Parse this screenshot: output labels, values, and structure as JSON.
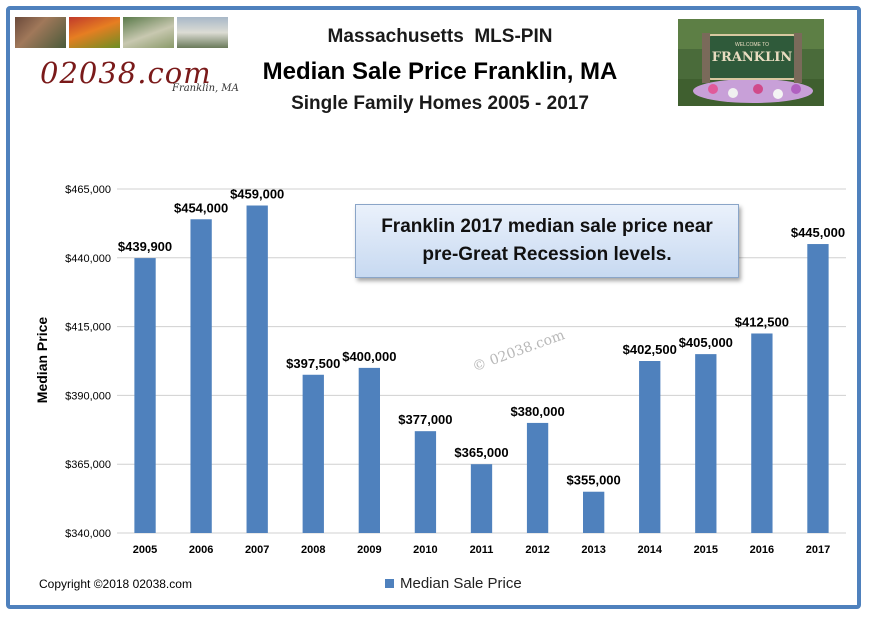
{
  "header": {
    "line1": "Massachusetts  MLS-PIN",
    "line2": "Median Sale Price Franklin, MA",
    "line3": "Single Family Homes 2005 - 2017"
  },
  "logo": {
    "text": "02038.com",
    "subtext": "Franklin, MA"
  },
  "sign": {
    "text": "FRANKLIN",
    "top": "WELCOME TO"
  },
  "callout": {
    "text": "Franklin 2017 median sale price near pre-Great Recession levels."
  },
  "watermark": "© 02038.com",
  "copyright": "Copyright ©2018 02038.com",
  "colors": {
    "bar": "#4f81bd",
    "frame": "#4f81bd"
  },
  "chart_data": {
    "type": "bar",
    "categories": [
      "2005",
      "2006",
      "2007",
      "2008",
      "2009",
      "2010",
      "2011",
      "2012",
      "2013",
      "2014",
      "2015",
      "2016",
      "2017"
    ],
    "series": [
      {
        "name": "Median Sale Price",
        "values": [
          439900,
          454000,
          459000,
          397500,
          400000,
          377000,
          365000,
          380000,
          355000,
          402500,
          405000,
          412500,
          445000
        ],
        "labels": [
          "$439,900",
          "$454,000",
          "$459,000",
          "$397,500",
          "$400,000",
          "$377,000",
          "$365,000",
          "$380,000",
          "$355,000",
          "$402,500",
          "$405,000",
          "$412,500",
          "$445,000"
        ]
      }
    ],
    "ylabel": "Median Price",
    "xlabel": "",
    "ylim": [
      340000,
      465000
    ],
    "yticks": [
      340000,
      365000,
      390000,
      415000,
      440000,
      465000
    ],
    "ytick_labels": [
      "$340,000",
      "$365,000",
      "$390,000",
      "$415,000",
      "$440,000",
      "$465,000"
    ],
    "grid": true,
    "legend": "bottom"
  }
}
